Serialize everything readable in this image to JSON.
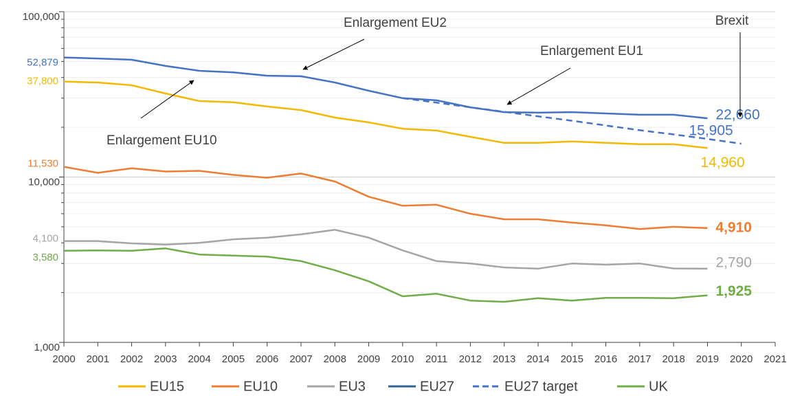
{
  "chart_data": {
    "type": "line",
    "log_scale": true,
    "grid": true,
    "legend": "bottom",
    "x": [
      2000,
      2001,
      2002,
      2003,
      2004,
      2005,
      2006,
      2007,
      2008,
      2009,
      2010,
      2011,
      2012,
      2013,
      2014,
      2015,
      2016,
      2017,
      2018,
      2019,
      2020
    ],
    "xlim": [
      2000,
      2021
    ],
    "xticks": [
      2000,
      2001,
      2002,
      2003,
      2004,
      2005,
      2006,
      2007,
      2008,
      2009,
      2010,
      2011,
      2012,
      2013,
      2014,
      2015,
      2016,
      2017,
      2018,
      2019,
      2020,
      2021
    ],
    "ylim": [
      1000,
      100000
    ],
    "yticks": [
      {
        "value": 1000,
        "label": "1,000"
      },
      {
        "value": 10000,
        "label": "10,000"
      },
      {
        "value": 100000,
        "label": "100,000"
      }
    ],
    "yminorticks": [
      2000,
      3000,
      4000,
      5000,
      6000,
      7000,
      8000,
      9000,
      20000,
      30000,
      40000,
      50000,
      60000,
      70000,
      80000,
      90000
    ],
    "series": [
      {
        "name": "EU15",
        "color": "#f5b800",
        "values": [
          37800,
          37300,
          35900,
          32000,
          28800,
          28300,
          26700,
          25400,
          22900,
          21400,
          19600,
          19100,
          17500,
          16100,
          16100,
          16400,
          16100,
          15800,
          15800,
          14960,
          null
        ],
        "value_labels": [
          "37,800",
          null,
          null,
          null,
          null,
          null,
          null,
          null,
          null,
          null,
          null,
          null,
          null,
          null,
          null,
          null,
          null,
          null,
          null,
          "14,960",
          null
        ]
      },
      {
        "name": "EU10",
        "color": "#ed7d31",
        "values": [
          11530,
          10600,
          11300,
          10800,
          10900,
          10300,
          9900,
          10500,
          9400,
          7600,
          6700,
          6800,
          6000,
          5550,
          5550,
          5300,
          5100,
          4850,
          5000,
          4910,
          null
        ],
        "value_labels": [
          "11,530",
          null,
          null,
          null,
          null,
          null,
          null,
          null,
          null,
          null,
          null,
          null,
          null,
          null,
          null,
          null,
          null,
          null,
          null,
          "4,910",
          null
        ]
      },
      {
        "name": "EU3",
        "color": "#a5a5a5",
        "values": [
          4100,
          4100,
          3970,
          3900,
          4000,
          4200,
          4300,
          4500,
          4800,
          4300,
          3600,
          3100,
          3000,
          2840,
          2790,
          3000,
          2950,
          3000,
          2800,
          2790,
          null
        ],
        "value_labels": [
          "4,100",
          null,
          null,
          null,
          null,
          null,
          null,
          null,
          null,
          null,
          null,
          null,
          null,
          null,
          null,
          null,
          null,
          null,
          null,
          "2,790",
          null
        ]
      },
      {
        "name": "EU27",
        "color": "#4472c4",
        "values": [
          52879,
          52100,
          51200,
          47000,
          43900,
          43000,
          41000,
          40700,
          37300,
          33250,
          30000,
          29100,
          26400,
          24700,
          24500,
          24700,
          24250,
          23800,
          23800,
          22660,
          null
        ],
        "value_labels": [
          "52,879",
          null,
          null,
          null,
          null,
          null,
          null,
          null,
          null,
          null,
          null,
          null,
          null,
          null,
          null,
          null,
          null,
          null,
          null,
          "22,660",
          null
        ]
      },
      {
        "name": "EU27 target",
        "color": "#4472c4",
        "dashed": true,
        "values": [
          null,
          null,
          null,
          null,
          null,
          null,
          null,
          null,
          null,
          null,
          30000,
          28200,
          26400,
          24800,
          23300,
          21900,
          20500,
          19200,
          18100,
          17000,
          15905
        ],
        "value_labels": [
          null,
          null,
          null,
          null,
          null,
          null,
          null,
          null,
          null,
          null,
          null,
          null,
          null,
          null,
          null,
          null,
          null,
          null,
          null,
          null,
          "15,905"
        ]
      },
      {
        "name": "UK",
        "color": "#70ad47",
        "values": [
          3580,
          3600,
          3580,
          3700,
          3400,
          3350,
          3300,
          3100,
          2730,
          2340,
          1900,
          1970,
          1790,
          1760,
          1850,
          1790,
          1860,
          1860,
          1850,
          1925,
          null
        ],
        "value_labels": [
          "3,580",
          null,
          null,
          null,
          null,
          null,
          null,
          null,
          null,
          null,
          null,
          null,
          null,
          null,
          null,
          null,
          null,
          null,
          null,
          "1,925",
          null
        ]
      }
    ],
    "annotations": [
      "Enlargement EU2",
      "Enlargement EU1",
      "Enlargement EU10",
      "Brexit"
    ]
  }
}
